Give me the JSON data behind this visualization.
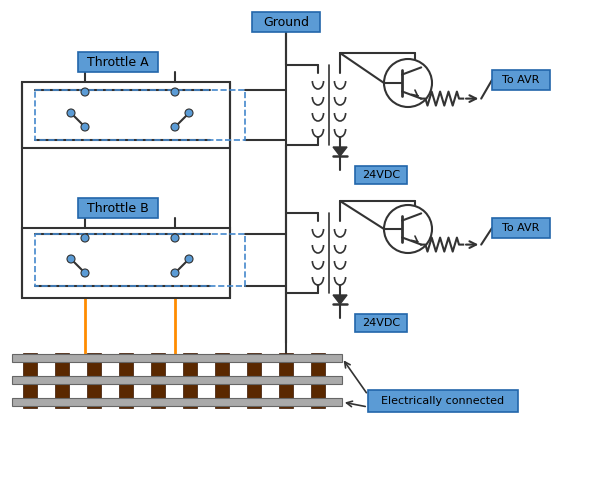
{
  "bg_color": "#ffffff",
  "box_fill": "#5b9bd5",
  "box_edge": "#2266aa",
  "dashed_color": "#4488cc",
  "line_color": "#333333",
  "orange_color": "#ff8c00",
  "rail_gray": "#aaaaaa",
  "rail_dark": "#888888",
  "tie_brown": "#5a2800",
  "labels": {
    "throttle_a": "Throttle A",
    "throttle_b": "Throttle B",
    "ground": "Ground",
    "to_avr": "To AVR",
    "vdc": "24VDC",
    "electrically": "Electrically connected"
  }
}
